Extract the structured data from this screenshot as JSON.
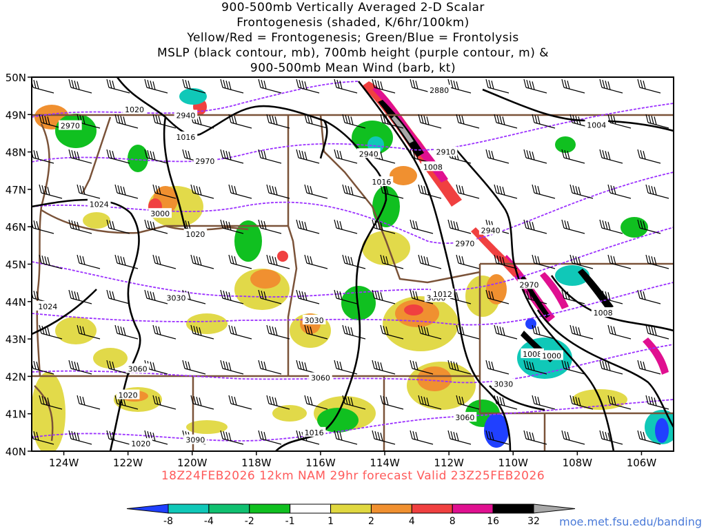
{
  "title": {
    "lines": [
      "900-500mb Vertically Averaged 2-D Scalar",
      "Frontogenesis (shaded, K/6hr/100km)",
      "Yellow/Red = Frontogenesis;  Green/Blue = Frontolysis",
      "MSLP (black contour, mb), 700mb height (purple contour, m) &",
      "900-500mb Mean Wind (barb, kt)"
    ]
  },
  "map": {
    "lat_labels": [
      "50N",
      "49N",
      "48N",
      "47N",
      "46N",
      "45N",
      "44N",
      "43N",
      "42N",
      "41N",
      "40N"
    ],
    "lon_labels": [
      "124W",
      "122W",
      "120W",
      "118W",
      "116W",
      "114W",
      "112W",
      "110W",
      "108W",
      "106W"
    ],
    "mslp_labels": [
      {
        "text": "1020",
        "lat": 49.13,
        "lon": -121.8
      },
      {
        "text": "1016",
        "lat": 48.4,
        "lon": -120.2
      },
      {
        "text": "1024",
        "lat": 46.6,
        "lon": -122.9
      },
      {
        "text": "1020",
        "lat": 45.8,
        "lon": -119.9
      },
      {
        "text": "1024",
        "lat": 43.87,
        "lon": -124.5
      },
      {
        "text": "1020",
        "lat": 41.5,
        "lon": -122.0
      },
      {
        "text": "1020",
        "lat": 40.2,
        "lon": -121.6
      },
      {
        "text": "1016",
        "lat": 47.2,
        "lon": -114.1
      },
      {
        "text": "1008",
        "lat": 47.6,
        "lon": -112.5
      },
      {
        "text": "1012",
        "lat": 44.2,
        "lon": -112.2
      },
      {
        "text": "1016",
        "lat": 40.5,
        "lon": -116.2
      },
      {
        "text": "1004",
        "lat": 48.72,
        "lon": -107.4
      },
      {
        "text": "1008",
        "lat": 43.7,
        "lon": -107.2
      },
      {
        "text": "1008",
        "lat": 42.6,
        "lon": -109.4
      },
      {
        "text": "1000",
        "lat": 42.55,
        "lon": -108.8
      }
    ],
    "height_labels": [
      {
        "text": "2880",
        "lat": 49.65,
        "lon": -112.3
      },
      {
        "text": "2940",
        "lat": 48.98,
        "lon": -120.2
      },
      {
        "text": "2970",
        "lat": 48.7,
        "lon": -123.8
      },
      {
        "text": "2970",
        "lat": 47.75,
        "lon": -119.6
      },
      {
        "text": "2940",
        "lat": 47.95,
        "lon": -114.5
      },
      {
        "text": "2910",
        "lat": 48.0,
        "lon": -112.1
      },
      {
        "text": "3000",
        "lat": 46.35,
        "lon": -121.0
      },
      {
        "text": "2940",
        "lat": 45.9,
        "lon": -110.7
      },
      {
        "text": "2970",
        "lat": 45.55,
        "lon": -111.5
      },
      {
        "text": "2970",
        "lat": 44.45,
        "lon": -109.5
      },
      {
        "text": "3030",
        "lat": 44.1,
        "lon": -120.5
      },
      {
        "text": "3030",
        "lat": 43.5,
        "lon": -116.2
      },
      {
        "text": "3000",
        "lat": 44.1,
        "lon": -112.4
      },
      {
        "text": "3060",
        "lat": 42.2,
        "lon": -121.7
      },
      {
        "text": "3060",
        "lat": 41.96,
        "lon": -116.0
      },
      {
        "text": "3030",
        "lat": 41.8,
        "lon": -110.3
      },
      {
        "text": "3060",
        "lat": 40.9,
        "lon": -111.5
      },
      {
        "text": "3090",
        "lat": 40.3,
        "lon": -119.9
      }
    ],
    "colors": {
      "mslp": "#000000",
      "height": "#9b30ff",
      "border": "#7a5238",
      "barb": "#000000"
    }
  },
  "colorbar": {
    "labels": [
      "-8",
      "-4",
      "-2",
      "-1",
      "1",
      "2",
      "4",
      "8",
      "16",
      "32"
    ],
    "colors": [
      "#2040ff",
      "#10c8b8",
      "#10c070",
      "#10c020",
      "#ffffff",
      "#e0d840",
      "#f09030",
      "#f04040",
      "#e01090",
      "#000000",
      "#a8a8a8"
    ]
  },
  "footer": {
    "run_info": "18Z24FEB2026 12km NAM 29hr forecast Valid 23Z25FEB2026",
    "credit": "moe.met.fsu.edu/banding"
  }
}
